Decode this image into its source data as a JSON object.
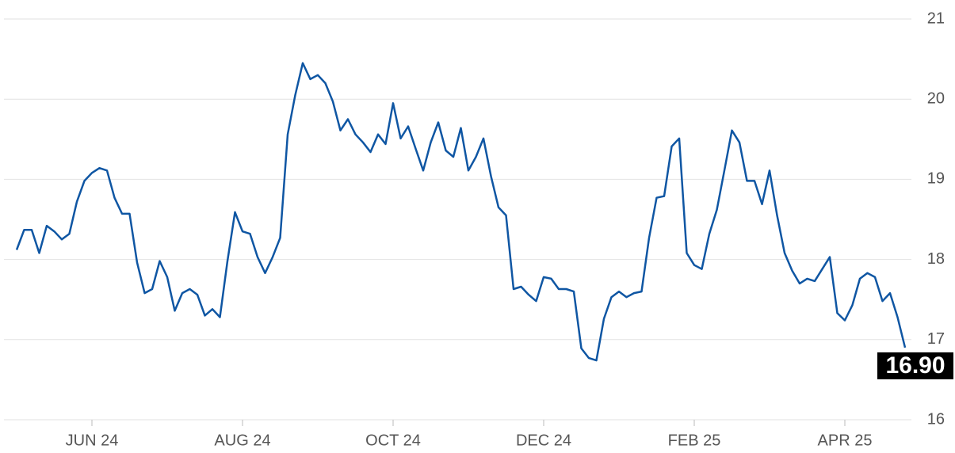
{
  "chart_data": {
    "type": "line",
    "categories": [
      null,
      null,
      null,
      null,
      null,
      null,
      null,
      null,
      null,
      null,
      "JUN 24",
      null,
      null,
      null,
      null,
      null,
      null,
      null,
      null,
      null,
      null,
      null,
      null,
      null,
      null,
      null,
      null,
      null,
      null,
      null,
      "AUG 24",
      null,
      null,
      null,
      null,
      null,
      null,
      null,
      null,
      null,
      null,
      null,
      null,
      null,
      null,
      null,
      null,
      null,
      null,
      null,
      "OCT 24",
      null,
      null,
      null,
      null,
      null,
      null,
      null,
      null,
      null,
      null,
      null,
      null,
      null,
      null,
      null,
      null,
      null,
      null,
      null,
      "DEC 24",
      null,
      null,
      null,
      null,
      null,
      null,
      null,
      null,
      null,
      null,
      null,
      null,
      null,
      null,
      null,
      null,
      null,
      null,
      null,
      "FEB 25",
      null,
      null,
      null,
      null,
      null,
      null,
      null,
      null,
      null,
      null,
      null,
      null,
      null,
      null,
      null,
      null,
      null,
      null,
      null,
      "APR 25",
      null,
      null,
      null,
      null,
      null,
      null,
      null,
      null
    ],
    "values": [
      18.12,
      18.37,
      18.37,
      18.08,
      18.42,
      18.35,
      18.25,
      18.32,
      18.72,
      18.98,
      19.08,
      19.14,
      19.11,
      18.77,
      18.57,
      18.57,
      17.96,
      17.58,
      17.63,
      17.98,
      17.78,
      17.36,
      17.58,
      17.63,
      17.56,
      17.3,
      17.38,
      17.28,
      17.98,
      18.59,
      18.35,
      18.32,
      18.03,
      17.83,
      18.03,
      18.27,
      19.56,
      20.05,
      20.45,
      20.25,
      20.3,
      20.2,
      19.97,
      19.61,
      19.75,
      19.56,
      19.46,
      19.34,
      19.56,
      19.44,
      19.95,
      19.51,
      19.66,
      19.38,
      19.11,
      19.46,
      19.71,
      19.36,
      19.28,
      19.64,
      19.11,
      19.28,
      19.51,
      19.04,
      18.65,
      18.55,
      17.63,
      17.66,
      17.56,
      17.48,
      17.78,
      17.76,
      17.63,
      17.63,
      17.6,
      16.89,
      16.77,
      16.74,
      17.26,
      17.53,
      17.6,
      17.53,
      17.58,
      17.6,
      18.27,
      18.77,
      18.79,
      19.41,
      19.51,
      18.08,
      17.93,
      17.88,
      18.32,
      18.62,
      19.11,
      19.61,
      19.46,
      18.98,
      18.98,
      18.69,
      19.11,
      18.55,
      18.08,
      17.86,
      17.7,
      17.76,
      17.73,
      17.88,
      18.03,
      17.33,
      17.24,
      17.43,
      17.76,
      17.83,
      17.78,
      17.48,
      17.58,
      17.28,
      16.9
    ],
    "value_labels": [
      null,
      null,
      null,
      null,
      null,
      null,
      null,
      null,
      null,
      null,
      null,
      null,
      null,
      null,
      null,
      null,
      null,
      null,
      null,
      null,
      null,
      null,
      null,
      null,
      null,
      null,
      null,
      null,
      null,
      null,
      null,
      null,
      null,
      null,
      null,
      null,
      null,
      null,
      null,
      null,
      null,
      null,
      null,
      null,
      null,
      null,
      null,
      null,
      null,
      null,
      null,
      null,
      null,
      null,
      null,
      null,
      null,
      null,
      null,
      null,
      null,
      null,
      null,
      null,
      null,
      null,
      null,
      null,
      null,
      null,
      null,
      null,
      null,
      null,
      null,
      null,
      null,
      null,
      null,
      null,
      null,
      null,
      null,
      null,
      null,
      null,
      null,
      null,
      null,
      null,
      null,
      null,
      null,
      null,
      null,
      null,
      null,
      null,
      null,
      null,
      null,
      null,
      null,
      null,
      null,
      null,
      null,
      null,
      null,
      null,
      null,
      null,
      null,
      null,
      null,
      null,
      null,
      null,
      "16.90"
    ],
    "color": "#0f56a3",
    "ylim": [
      16,
      21
    ],
    "yticks": [
      16,
      17,
      18,
      19,
      20,
      21
    ],
    "grid": true
  }
}
